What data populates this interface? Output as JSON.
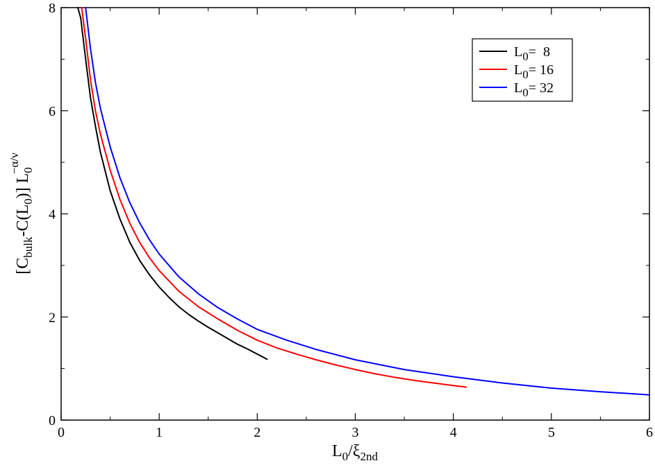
{
  "chart_data": {
    "type": "line",
    "title": "",
    "xlabel": {
      "main": "L",
      "sub1": "0",
      "mid": "/ξ",
      "sub2": "2nd"
    },
    "ylabel": {
      "p1": "[C",
      "s1": "bulk",
      "p2": "-C(L",
      "s2": "0",
      "p3": ")] L",
      "s3": "0",
      "sup": "−α/ν"
    },
    "xlim": [
      0,
      6
    ],
    "ylim": [
      0,
      8
    ],
    "xticks": [
      0,
      1,
      2,
      3,
      4,
      5,
      6
    ],
    "yticks": [
      0,
      2,
      4,
      6,
      8
    ],
    "x_minor_step": 0.5,
    "y_minor_step": 1,
    "grid": false,
    "legend_position": "top-right",
    "series": [
      {
        "name": {
          "pre": "L",
          "sub": "0",
          "post": "=  8"
        },
        "color": "#000000",
        "x": [
          0.17,
          0.2,
          0.25,
          0.3,
          0.35,
          0.4,
          0.5,
          0.6,
          0.7,
          0.8,
          0.9,
          1.0,
          1.1,
          1.2,
          1.3,
          1.4,
          1.5,
          1.6,
          1.7,
          1.8,
          1.9,
          2.0,
          2.1
        ],
        "y": [
          8.0,
          7.8,
          7.0,
          6.25,
          5.7,
          5.2,
          4.45,
          3.9,
          3.45,
          3.1,
          2.82,
          2.58,
          2.38,
          2.2,
          2.05,
          1.92,
          1.8,
          1.69,
          1.58,
          1.47,
          1.38,
          1.28,
          1.18
        ]
      },
      {
        "name": {
          "pre": "L",
          "sub": "0",
          "post": "= 16"
        },
        "color": "#ff0000",
        "x": [
          0.21,
          0.25,
          0.3,
          0.35,
          0.4,
          0.5,
          0.6,
          0.7,
          0.8,
          0.9,
          1.0,
          1.2,
          1.4,
          1.6,
          1.8,
          2.0,
          2.2,
          2.4,
          2.6,
          2.8,
          3.0,
          3.2,
          3.4,
          3.6,
          3.8,
          4.0,
          4.13
        ],
        "y": [
          8.0,
          7.4,
          6.6,
          6.0,
          5.55,
          4.85,
          4.28,
          3.82,
          3.45,
          3.15,
          2.9,
          2.5,
          2.2,
          1.96,
          1.74,
          1.55,
          1.4,
          1.28,
          1.17,
          1.07,
          0.98,
          0.9,
          0.83,
          0.77,
          0.72,
          0.67,
          0.64
        ]
      },
      {
        "name": {
          "pre": "L",
          "sub": "0",
          "post": "= 32"
        },
        "color": "#0000ff",
        "x": [
          0.25,
          0.3,
          0.35,
          0.4,
          0.5,
          0.6,
          0.7,
          0.8,
          0.9,
          1.0,
          1.2,
          1.4,
          1.6,
          1.8,
          2.0,
          2.3,
          2.6,
          3.0,
          3.5,
          4.0,
          4.5,
          5.0,
          5.5,
          6.0
        ],
        "y": [
          8.0,
          7.2,
          6.55,
          6.05,
          5.3,
          4.7,
          4.22,
          3.83,
          3.5,
          3.22,
          2.78,
          2.45,
          2.18,
          1.96,
          1.76,
          1.55,
          1.37,
          1.17,
          0.98,
          0.84,
          0.72,
          0.62,
          0.55,
          0.49
        ]
      }
    ]
  }
}
